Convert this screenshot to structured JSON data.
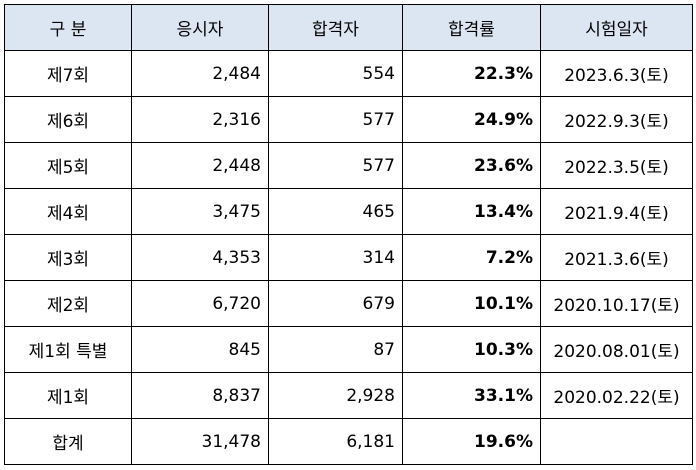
{
  "headers": {
    "round": "구 분",
    "applicants": "응시자",
    "passed": "합격자",
    "pass_rate": "합격률",
    "exam_date": "시험일자"
  },
  "rows": [
    {
      "round": "제7회",
      "applicants": "2,484",
      "passed": "554",
      "pass_rate": "22.3%",
      "exam_date": "2023.6.3(토)"
    },
    {
      "round": "제6회",
      "applicants": "2,316",
      "passed": "577",
      "pass_rate": "24.9%",
      "exam_date": "2022.9.3(토)"
    },
    {
      "round": "제5회",
      "applicants": "2,448",
      "passed": "577",
      "pass_rate": "23.6%",
      "exam_date": "2022.3.5(토)"
    },
    {
      "round": "제4회",
      "applicants": "3,475",
      "passed": "465",
      "pass_rate": "13.4%",
      "exam_date": "2021.9.4(토)"
    },
    {
      "round": "제3회",
      "applicants": "4,353",
      "passed": "314",
      "pass_rate": "7.2%",
      "exam_date": "2021.3.6(토)"
    },
    {
      "round": "제2회",
      "applicants": "6,720",
      "passed": "679",
      "pass_rate": "10.1%",
      "exam_date": "2020.10.17(토)"
    },
    {
      "round": "제1회 특별",
      "applicants": "845",
      "passed": "87",
      "pass_rate": "10.3%",
      "exam_date": "2020.08.01(토)"
    },
    {
      "round": "제1회",
      "applicants": "8,837",
      "passed": "2,928",
      "pass_rate": "33.1%",
      "exam_date": "2020.02.22(토)"
    }
  ],
  "total": {
    "round": "합계",
    "applicants": "31,478",
    "passed": "6,181",
    "pass_rate": "19.6%",
    "exam_date": ""
  },
  "colors": {
    "header_bg": "#dce6f2",
    "rate_text": "#1f6fb5",
    "border": "#000000"
  }
}
